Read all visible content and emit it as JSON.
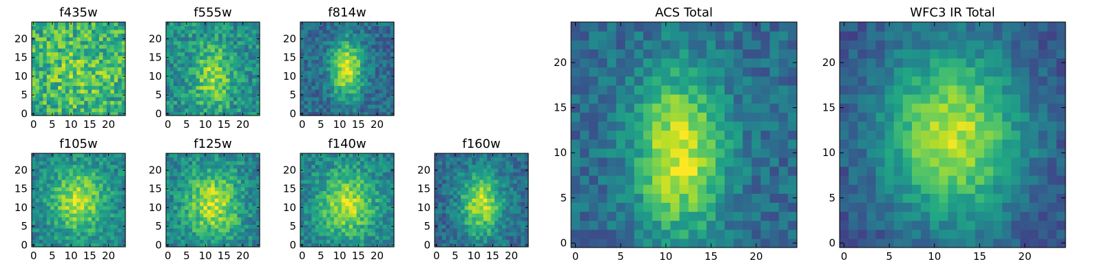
{
  "figure": {
    "background": "#ffffff",
    "colormap": "viridis"
  },
  "chart_data": [
    {
      "type": "heatmap",
      "title": "f435w",
      "grid_size": 25,
      "xlim": [
        0,
        24
      ],
      "ylim": [
        0,
        24
      ],
      "x_ticks": [
        "0",
        "5",
        "10",
        "15",
        "20"
      ],
      "y_ticks": [
        "0",
        "5",
        "10",
        "15",
        "20"
      ],
      "blob": {
        "cx": 12,
        "cy": 11,
        "sx": 8,
        "sy": 8,
        "amp": 0.15,
        "base": 0.6,
        "noise": 0.45,
        "seed": 11
      }
    },
    {
      "type": "heatmap",
      "title": "f555w",
      "grid_size": 25,
      "xlim": [
        0,
        24
      ],
      "ylim": [
        0,
        24
      ],
      "x_ticks": [
        "0",
        "5",
        "10",
        "15",
        "20"
      ],
      "y_ticks": [
        "0",
        "5",
        "10",
        "15",
        "20"
      ],
      "blob": {
        "cx": 12,
        "cy": 10,
        "sx": 3.5,
        "sy": 6,
        "amp": 0.35,
        "base": 0.5,
        "noise": 0.35,
        "seed": 23
      }
    },
    {
      "type": "heatmap",
      "title": "f814w",
      "grid_size": 25,
      "xlim": [
        0,
        24
      ],
      "ylim": [
        0,
        24
      ],
      "x_ticks": [
        "0",
        "5",
        "10",
        "15",
        "20"
      ],
      "y_ticks": [
        "0",
        "5",
        "10",
        "15",
        "20"
      ],
      "blob": {
        "cx": 12,
        "cy": 12,
        "sx": 3,
        "sy": 5.5,
        "amp": 0.6,
        "base": 0.35,
        "noise": 0.28,
        "seed": 37
      }
    },
    {
      "type": "heatmap",
      "title": "f105w",
      "grid_size": 25,
      "xlim": [
        0,
        24
      ],
      "ylim": [
        0,
        24
      ],
      "x_ticks": [
        "0",
        "5",
        "10",
        "15",
        "20"
      ],
      "y_ticks": [
        "0",
        "5",
        "10",
        "15",
        "20"
      ],
      "blob": {
        "cx": 12,
        "cy": 12,
        "sx": 5,
        "sy": 6,
        "amp": 0.45,
        "base": 0.45,
        "noise": 0.3,
        "seed": 41
      }
    },
    {
      "type": "heatmap",
      "title": "f125w",
      "grid_size": 25,
      "xlim": [
        0,
        24
      ],
      "ylim": [
        0,
        24
      ],
      "x_ticks": [
        "0",
        "5",
        "10",
        "15",
        "20"
      ],
      "y_ticks": [
        "0",
        "5",
        "10",
        "15",
        "20"
      ],
      "blob": {
        "cx": 12,
        "cy": 11,
        "sx": 5,
        "sy": 6.5,
        "amp": 0.45,
        "base": 0.45,
        "noise": 0.32,
        "seed": 53
      }
    },
    {
      "type": "heatmap",
      "title": "f140w",
      "grid_size": 25,
      "xlim": [
        0,
        24
      ],
      "ylim": [
        0,
        24
      ],
      "x_ticks": [
        "0",
        "5",
        "10",
        "15",
        "20"
      ],
      "y_ticks": [
        "0",
        "5",
        "10",
        "15",
        "20"
      ],
      "blob": {
        "cx": 12,
        "cy": 11,
        "sx": 5,
        "sy": 6,
        "amp": 0.45,
        "base": 0.45,
        "noise": 0.3,
        "seed": 67
      }
    },
    {
      "type": "heatmap",
      "title": "f160w",
      "grid_size": 25,
      "xlim": [
        0,
        24
      ],
      "ylim": [
        0,
        24
      ],
      "x_ticks": [
        "0",
        "5",
        "10",
        "15",
        "20"
      ],
      "y_ticks": [
        "0",
        "5",
        "10",
        "15",
        "20"
      ],
      "blob": {
        "cx": 12,
        "cy": 11,
        "sx": 4,
        "sy": 6,
        "amp": 0.55,
        "base": 0.35,
        "noise": 0.28,
        "seed": 79
      }
    },
    {
      "type": "heatmap",
      "title": "ACS Total",
      "grid_size": 25,
      "xlim": [
        0,
        24
      ],
      "ylim": [
        0,
        24
      ],
      "x_ticks": [
        "0",
        "5",
        "10",
        "15",
        "20"
      ],
      "y_ticks": [
        "0",
        "5",
        "10",
        "15",
        "20"
      ],
      "blob": {
        "cx": 11.5,
        "cy": 10,
        "sx": 3.5,
        "sy": 6.5,
        "amp": 0.6,
        "base": 0.35,
        "noise": 0.25,
        "seed": 97
      }
    },
    {
      "type": "heatmap",
      "title": "WFC3 IR Total",
      "grid_size": 25,
      "xlim": [
        0,
        24
      ],
      "ylim": [
        0,
        24
      ],
      "x_ticks": [
        "0",
        "5",
        "10",
        "15",
        "20"
      ],
      "y_ticks": [
        "0",
        "5",
        "10",
        "15",
        "20"
      ],
      "blob": {
        "cx": 12,
        "cy": 12,
        "sx": 5.5,
        "sy": 7,
        "amp": 0.65,
        "base": 0.25,
        "noise": 0.2,
        "seed": 131
      }
    }
  ]
}
